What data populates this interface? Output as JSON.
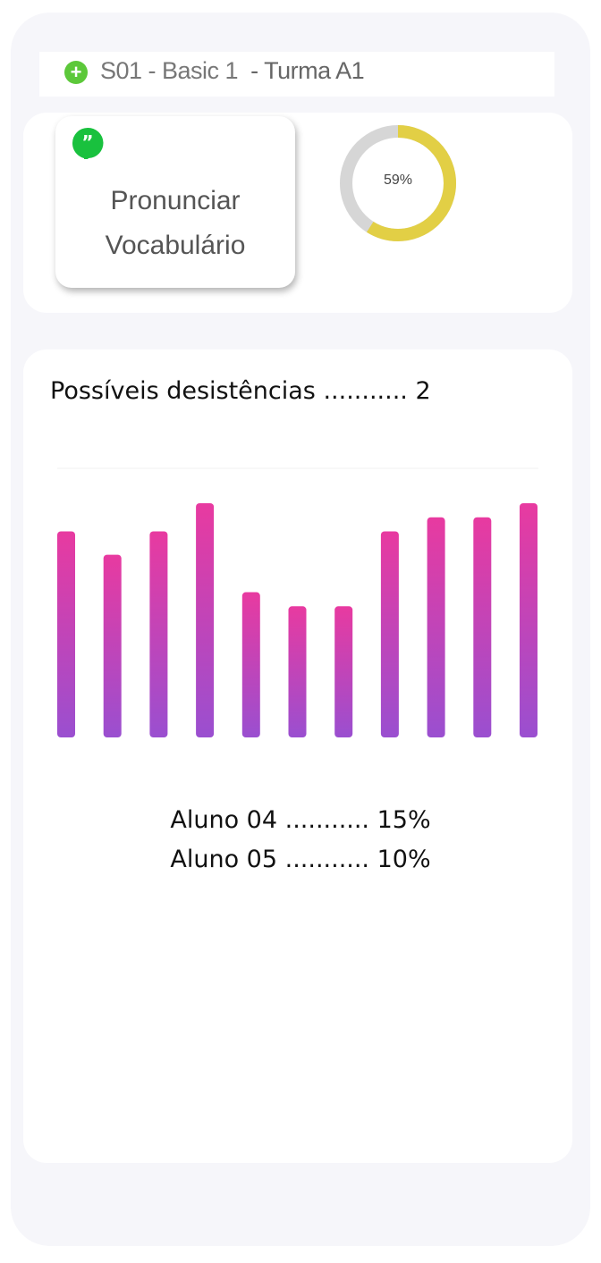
{
  "header": {
    "icon": "plus-circle-icon",
    "course": "S01 - Basic 1",
    "class_name": "- Turma A1"
  },
  "activity_card": {
    "icon": "quote-bubble-icon",
    "line1": "Pronunciar",
    "line2": "Vocabulário"
  },
  "progress": {
    "label": "59%",
    "value": 0.59,
    "fill_color": "#e2cf45",
    "track_color": "#d6d6d6"
  },
  "dropouts": {
    "label": "Possíveis desistências ........... 2"
  },
  "chart_data": {
    "type": "bar",
    "values": [
      0.88,
      0.78,
      0.88,
      1.0,
      0.62,
      0.56,
      0.56,
      0.88,
      0.94,
      0.94,
      1.0
    ],
    "gradient": [
      "#e83aa0",
      "#9a4fd0"
    ],
    "grid": false
  },
  "students": [
    {
      "text": "Aluno 04 ........... 15%"
    },
    {
      "text": "Aluno 05 ........... 10%"
    }
  ]
}
